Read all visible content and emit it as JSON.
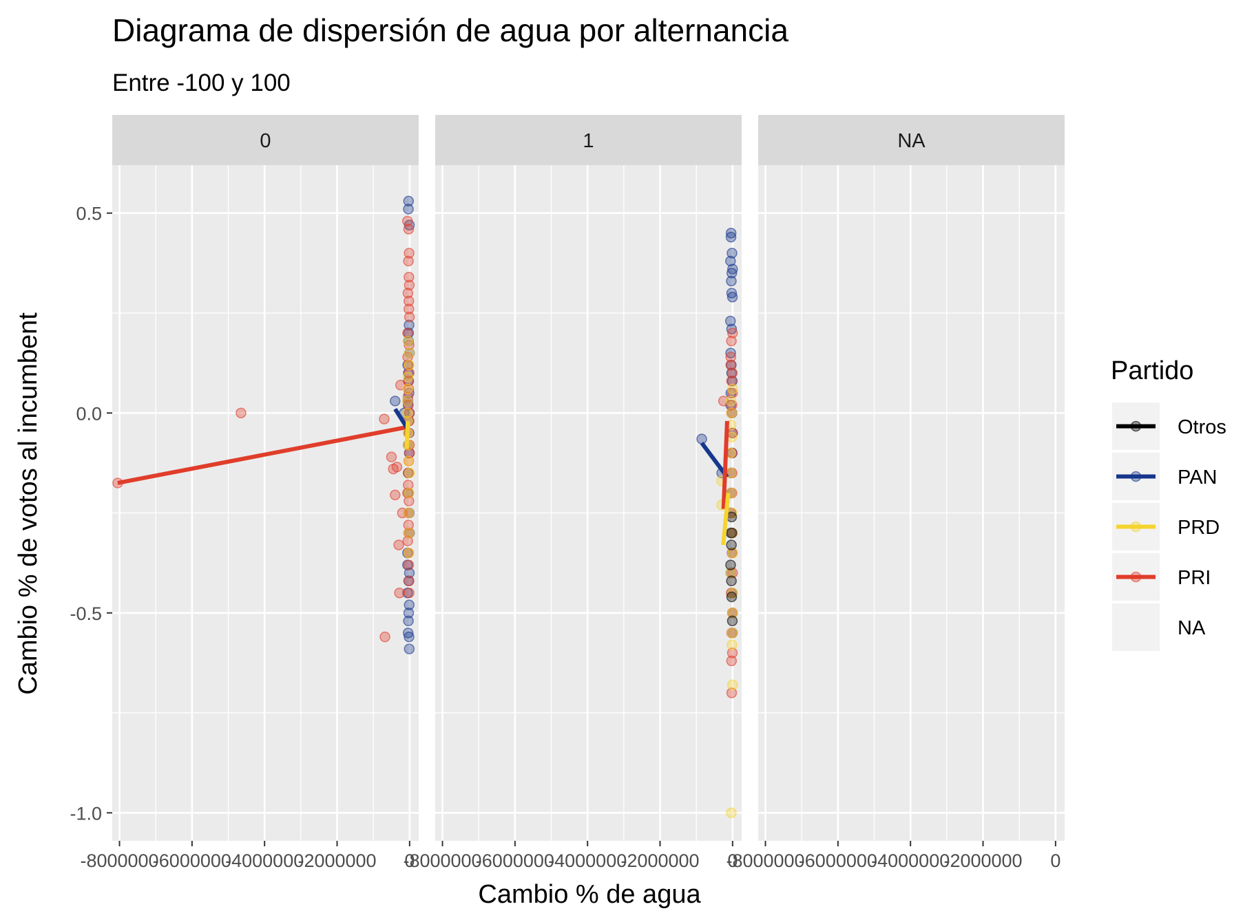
{
  "chart_data": {
    "type": "scatter",
    "title": "Diagrama de dispersión de agua por alternancia",
    "subtitle": "Entre -100 y 100",
    "xlabel": "Cambio % de agua",
    "ylabel": "Cambio % de votos al incumbent",
    "facet_variable": "alternancia",
    "facets": [
      "0",
      "1",
      "NA"
    ],
    "xlim": [
      -8200000,
      250000
    ],
    "ylim": [
      -1.07,
      0.62
    ],
    "x_ticks": [
      -8000000,
      -6000000,
      -4000000,
      -2000000,
      0
    ],
    "x_tick_labels": [
      "-8000000",
      "-6000000",
      "-4000000",
      "-2000000",
      "0"
    ],
    "y_ticks": [
      -1.0,
      -0.5,
      0.0,
      0.5
    ],
    "y_tick_labels": [
      "-1.0",
      "-0.5",
      "0.0",
      "0.5"
    ],
    "grid": true,
    "legend": {
      "title": "Partido",
      "position": "right",
      "entries": [
        "Otros",
        "PAN",
        "PRD",
        "PRI",
        "NA"
      ]
    },
    "series_colors": {
      "Otros": "#000000",
      "PAN": "#17378c",
      "PRD": "#f5d430",
      "PRI": "#e03d2b"
    },
    "points": {
      "0": {
        "PAN": {
          "y": [
            0.53,
            0.51,
            0.47,
            0.22,
            0.2,
            0.18,
            0.15,
            0.12,
            0.1,
            0.08,
            0.05,
            0.03,
            0.02,
            0.0,
            -0.02,
            -0.05,
            -0.08,
            -0.1,
            -0.15,
            -0.2,
            -0.25,
            -0.3,
            -0.35,
            -0.38,
            -0.4,
            -0.42,
            -0.45,
            -0.48,
            -0.5,
            -0.52,
            -0.55,
            -0.56,
            -0.59
          ],
          "outliers": [
            [
              -400000,
              0.03
            ],
            [
              -150000,
              0.0
            ]
          ]
        },
        "PRI": {
          "y": [
            0.48,
            0.46,
            0.4,
            0.38,
            0.34,
            0.32,
            0.3,
            0.28,
            0.26,
            0.24,
            0.2,
            0.17,
            0.14,
            0.12,
            0.1,
            0.08,
            0.06,
            0.04,
            0.02,
            0.0,
            -0.02,
            -0.05,
            -0.08,
            -0.1,
            -0.12,
            -0.15,
            -0.18,
            -0.2,
            -0.22,
            -0.25,
            -0.28,
            -0.3,
            -0.32,
            -0.35,
            -0.38,
            -0.42,
            -0.45
          ],
          "outliers": [
            [
              -8050000,
              -0.175
            ],
            [
              -4650000,
              0.0
            ],
            [
              -700000,
              -0.015
            ],
            [
              -500000,
              -0.11
            ],
            [
              -450000,
              -0.14
            ],
            [
              -400000,
              -0.205
            ],
            [
              -350000,
              -0.135
            ],
            [
              -300000,
              -0.33
            ],
            [
              -280000,
              -0.45
            ],
            [
              -680000,
              -0.56
            ],
            [
              -250000,
              0.07
            ],
            [
              -200000,
              -0.25
            ]
          ]
        },
        "PRD": {
          "y": [
            0.18,
            0.15,
            0.12,
            0.09,
            0.06,
            0.03,
            0.0,
            -0.02,
            -0.05,
            -0.08,
            -0.12,
            -0.15,
            -0.2,
            -0.25,
            -0.3,
            -0.35
          ],
          "outliers": []
        },
        "Otros": {
          "y": [],
          "outliers": []
        }
      },
      "1": {
        "PAN": {
          "y": [
            0.45,
            0.44,
            0.4,
            0.38,
            0.36,
            0.35,
            0.33,
            0.3,
            0.29,
            0.23,
            0.21,
            0.15,
            0.12,
            0.1,
            0.08,
            0.05,
            0.02,
            0.0,
            -0.05,
            -0.1,
            -0.15,
            -0.2,
            -0.25,
            -0.3,
            -0.35,
            -0.4,
            -0.45,
            -0.5,
            -0.55
          ],
          "outliers": [
            [
              -850000,
              -0.065
            ],
            [
              -300000,
              -0.15
            ]
          ]
        },
        "PRI": {
          "y": [
            0.2,
            0.18,
            0.14,
            0.12,
            0.1,
            0.08,
            0.05,
            0.02,
            0.0,
            -0.05,
            -0.1,
            -0.15,
            -0.2,
            -0.25,
            -0.3,
            -0.35,
            -0.4,
            -0.45,
            -0.5,
            -0.55,
            -0.6,
            -0.62,
            -0.7
          ],
          "outliers": [
            [
              -250000,
              0.03
            ]
          ]
        },
        "PRD": {
          "y": [
            0.06,
            0.03,
            0.0,
            -0.03,
            -0.06,
            -0.1,
            -0.15,
            -0.2,
            -0.25,
            -0.3,
            -0.35,
            -0.4,
            -0.45,
            -0.5,
            -0.55,
            -0.58,
            -0.68,
            -1.0
          ],
          "outliers": [
            [
              -300000,
              -0.17
            ],
            [
              -300000,
              -0.23
            ]
          ]
        },
        "Otros": {
          "y": [
            -0.26,
            -0.3,
            -0.33,
            -0.38,
            -0.42,
            -0.46,
            -0.52
          ],
          "outliers": []
        }
      },
      "NA": {}
    },
    "fit_lines": {
      "0": {
        "PRI": [
          [
            -8050000,
            -0.175
          ],
          [
            -50000,
            -0.035
          ]
        ],
        "PAN": [
          [
            -400000,
            0.01
          ],
          [
            -50000,
            -0.04
          ]
        ],
        "PRD": [
          [
            -50000,
            -0.02
          ],
          [
            -80000,
            -0.09
          ]
        ]
      },
      "1": {
        "PAN": [
          [
            -850000,
            -0.075
          ],
          [
            -150000,
            -0.16
          ]
        ],
        "PRI": [
          [
            -150000,
            -0.02
          ],
          [
            -250000,
            -0.24
          ]
        ],
        "PRD": [
          [
            -120000,
            -0.2
          ],
          [
            -260000,
            -0.33
          ]
        ]
      },
      "NA": {}
    }
  }
}
